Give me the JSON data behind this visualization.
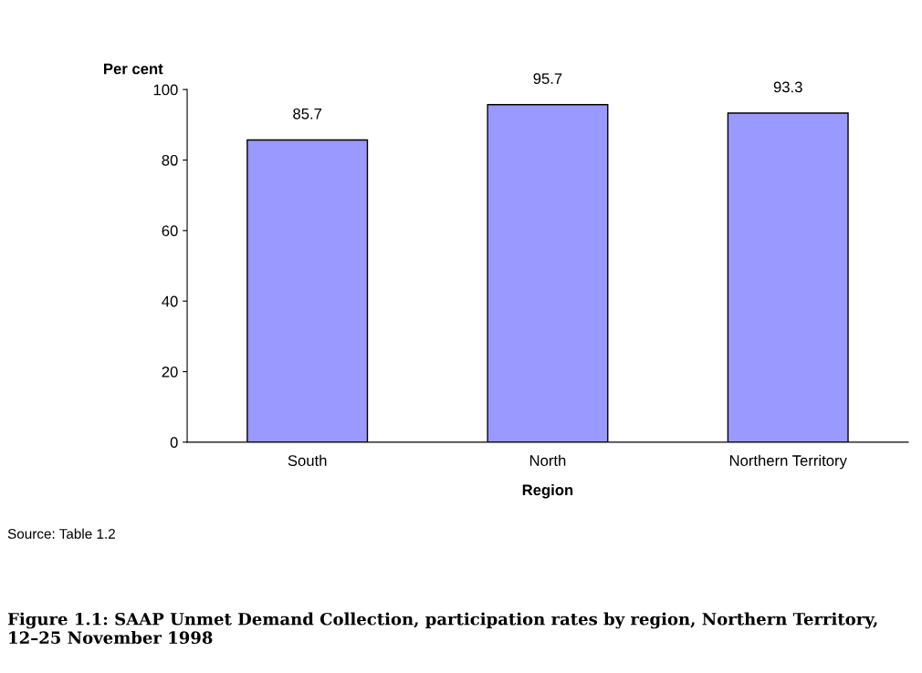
{
  "chart_data": {
    "type": "bar",
    "title": "Figure 1.1: SAAP Unmet Demand Collection, participation rates by region, Northern Territory, 12–25 November 1998",
    "xlabel": "Region",
    "ylabel": "Per cent",
    "categories": [
      "South",
      "North",
      "Northern Territory"
    ],
    "values": [
      85.7,
      95.7,
      93.3
    ],
    "color": "#9999ff",
    "data_labels": true,
    "ylim": [
      0,
      100
    ],
    "yticks": [
      0,
      20,
      40,
      60,
      80,
      100
    ],
    "grid": false,
    "legend": false,
    "annotations": [
      "Source: Table 1.2"
    ]
  }
}
